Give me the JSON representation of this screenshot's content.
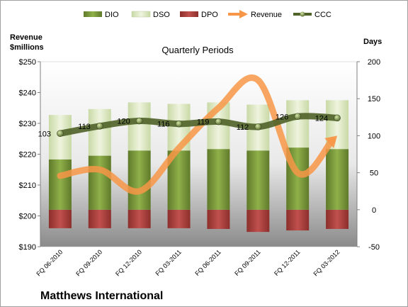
{
  "company": "Matthews International",
  "chart_data": {
    "type": "bar",
    "title": "Quarterly Periods",
    "left_axis_title": [
      "Revenue",
      "$millions"
    ],
    "right_axis_title": "Days",
    "left_ylim": [
      190,
      250
    ],
    "left_ticks": [
      "$190",
      "$200",
      "$210",
      "$220",
      "$230",
      "$240",
      "$250"
    ],
    "right_ylim": [
      -50,
      200
    ],
    "right_ticks": [
      "-50",
      "0",
      "50",
      "100",
      "150",
      "200"
    ],
    "categories": [
      "FQ 06-2010",
      "FQ 09-2010",
      "FQ 12-2010",
      "FQ 03-2011",
      "FQ 06-2011",
      "FQ 09-2011",
      "FQ 12-2011",
      "FQ 03-2012"
    ],
    "legend_placement": "top",
    "grid": false,
    "series": [
      {
        "name": "DIO",
        "axis": "right",
        "stacked": true,
        "color": "#77933C",
        "values": [
          68,
          73,
          80,
          80,
          82,
          80,
          84,
          82
        ]
      },
      {
        "name": "DSO",
        "axis": "right",
        "stacked": true,
        "color": "#D7E4BD",
        "values": [
          60,
          63,
          65,
          63,
          63,
          62,
          64,
          66
        ]
      },
      {
        "name": "DPO",
        "axis": "right",
        "stacked": true,
        "negative": true,
        "color": "#C0504D",
        "values": [
          -25,
          -25,
          -25,
          -25,
          -26,
          -30,
          -28,
          -26
        ]
      },
      {
        "name": "Revenue",
        "axis": "left",
        "type": "line",
        "color": "#F79646",
        "values": [
          213,
          215,
          208,
          222,
          235,
          244,
          214,
          226
        ]
      },
      {
        "name": "CCC",
        "axis": "right",
        "type": "line",
        "color": "#4F6228",
        "values": [
          103,
          113,
          120,
          116,
          119,
          112,
          126,
          124
        ],
        "data_labels": [
          "103",
          "113",
          "120",
          "116",
          "119",
          "112",
          "126",
          "124"
        ]
      }
    ]
  }
}
